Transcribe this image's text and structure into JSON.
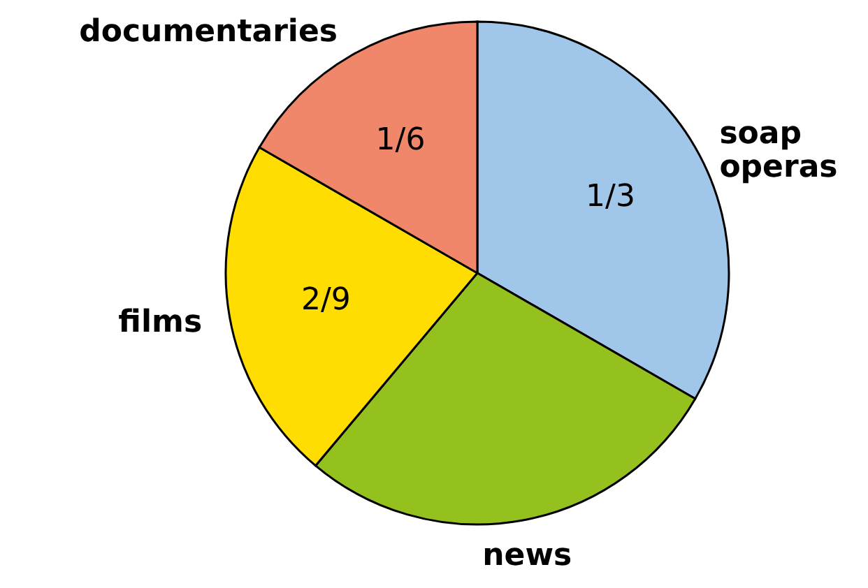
{
  "chart_data": {
    "type": "pie",
    "categories": [
      "soap operas",
      "news",
      "films",
      "documentaries"
    ],
    "values": [
      0.3333,
      0.2778,
      0.2222,
      0.1667
    ],
    "colors": [
      "#a0c6ea",
      "#95c11f",
      "#ffdd00",
      "#f0876a"
    ],
    "value_labels": [
      "1/3",
      null,
      "2/9",
      "1/6"
    ]
  }
}
